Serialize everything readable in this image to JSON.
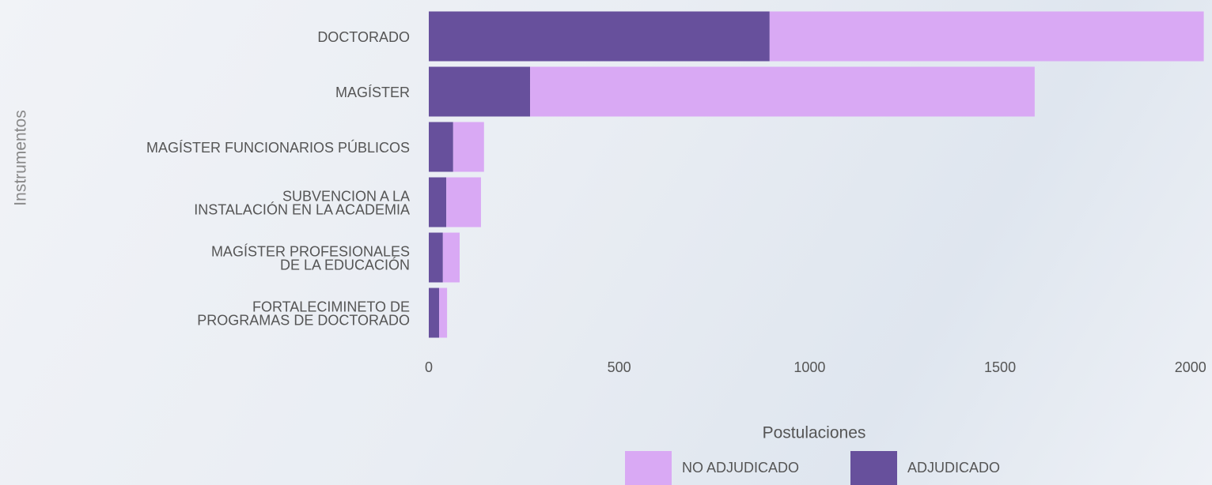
{
  "chart_data": {
    "type": "stacked_bar_horizontal",
    "categories": [
      "DOCTORADO",
      "MAGÍSTER",
      "MAGÍSTER FUNCIONARIOS PÚBLICOS",
      "SUBVENCION A LA\nINSTALACIÓN EN LA ACADEMIA",
      "MAGÍSTER PROFESIONALES\nDE LA EDUCACIÓN",
      "FORTALECIMINETO DE\nPROGRAMAS DE DOCTORADO"
    ],
    "series": [
      {
        "name": "NO ADJUDICADO",
        "color": "#d9a9f4",
        "values": [
          1140,
          1325,
          81,
          91,
          44,
          21
        ]
      },
      {
        "name": "ADJUDICADO",
        "color": "#67509c",
        "values": [
          895,
          266,
          64,
          46,
          37,
          27
        ]
      }
    ],
    "xlim": [
      0,
      2040
    ],
    "xticks": [
      0,
      500,
      1000,
      1500,
      2000
    ],
    "xlabel": "Postulaciones",
    "ylabel": "Instrumentos",
    "legend": "bottom"
  }
}
